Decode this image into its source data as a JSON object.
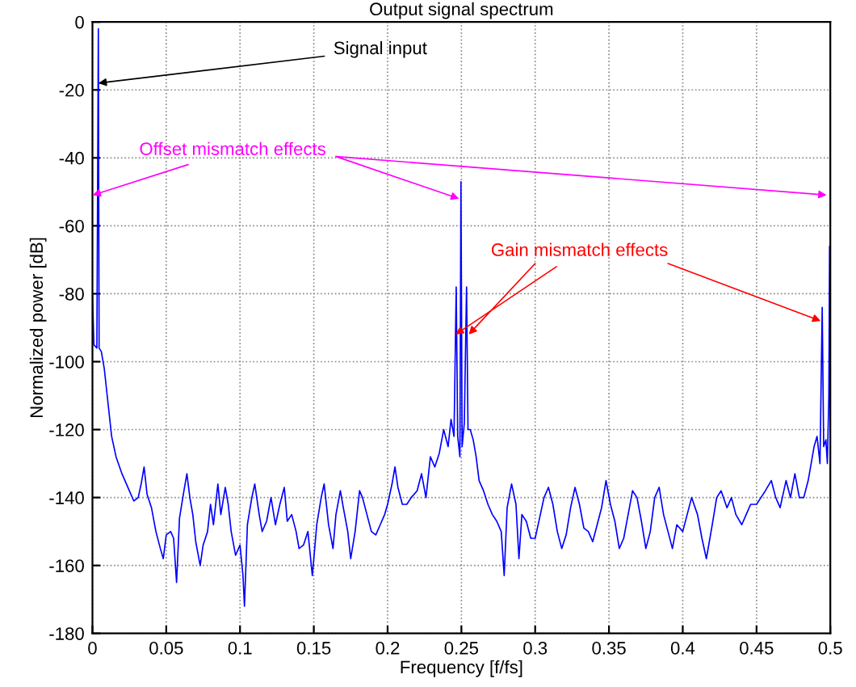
{
  "chart_data": {
    "type": "line",
    "title": "Output signal spectrum",
    "xlabel": "Frequency [f/fs]",
    "ylabel": "Normalized power [dB]",
    "xlim": [
      0,
      0.5
    ],
    "ylim": [
      -180,
      0
    ],
    "xticks": [
      0,
      0.05,
      0.1,
      0.15,
      0.2,
      0.25,
      0.3,
      0.35,
      0.4,
      0.45,
      0.5
    ],
    "yticks": [
      -180,
      -160,
      -140,
      -120,
      -100,
      -80,
      -60,
      -40,
      -20,
      0
    ],
    "grid": true,
    "line_style": "solid",
    "annotations": [
      {
        "text": "Signal input",
        "x": 0.004,
        "y": -18
      },
      {
        "text": "Offset mismatch effects",
        "x": 0,
        "y": -51
      },
      {
        "text": "Gain mismatch effects",
        "x": 0.246,
        "y": -92
      }
    ],
    "series": [
      {
        "color": "#0000ff",
        "x": [
          0,
          0.001,
          0.003,
          0.004,
          0.0045,
          0.006,
          0.008,
          0.01,
          0.013,
          0.016,
          0.02,
          0.025,
          0.028,
          0.031,
          0.033,
          0.035,
          0.037,
          0.04,
          0.043,
          0.046,
          0.048,
          0.05,
          0.053,
          0.055,
          0.057,
          0.059,
          0.062,
          0.064,
          0.066,
          0.068,
          0.07,
          0.073,
          0.075,
          0.078,
          0.08,
          0.082,
          0.085,
          0.087,
          0.09,
          0.092,
          0.094,
          0.097,
          0.1,
          0.102,
          0.103,
          0.105,
          0.108,
          0.11,
          0.113,
          0.115,
          0.118,
          0.121,
          0.124,
          0.127,
          0.13,
          0.132,
          0.135,
          0.138,
          0.14,
          0.143,
          0.146,
          0.149,
          0.152,
          0.155,
          0.157,
          0.16,
          0.163,
          0.165,
          0.168,
          0.17,
          0.173,
          0.175,
          0.178,
          0.181,
          0.183,
          0.186,
          0.189,
          0.192,
          0.195,
          0.198,
          0.2,
          0.203,
          0.205,
          0.207,
          0.21,
          0.213,
          0.216,
          0.22,
          0.223,
          0.226,
          0.229,
          0.232,
          0.235,
          0.238,
          0.241,
          0.243,
          0.245,
          0.2465,
          0.2475,
          0.249,
          0.2497,
          0.2505,
          0.252,
          0.2535,
          0.2545,
          0.256,
          0.258,
          0.26,
          0.262,
          0.265,
          0.268,
          0.271,
          0.274,
          0.277,
          0.279,
          0.281,
          0.284,
          0.287,
          0.289,
          0.291,
          0.294,
          0.297,
          0.3,
          0.303,
          0.306,
          0.309,
          0.312,
          0.315,
          0.318,
          0.321,
          0.324,
          0.327,
          0.33,
          0.333,
          0.336,
          0.339,
          0.342,
          0.345,
          0.348,
          0.351,
          0.354,
          0.357,
          0.36,
          0.363,
          0.366,
          0.369,
          0.372,
          0.375,
          0.378,
          0.381,
          0.384,
          0.387,
          0.39,
          0.393,
          0.396,
          0.4,
          0.403,
          0.406,
          0.41,
          0.413,
          0.416,
          0.42,
          0.423,
          0.426,
          0.43,
          0.433,
          0.436,
          0.44,
          0.443,
          0.446,
          0.45,
          0.453,
          0.456,
          0.46,
          0.463,
          0.466,
          0.47,
          0.473,
          0.476,
          0.479,
          0.482,
          0.485,
          0.487,
          0.489,
          0.491,
          0.493,
          0.4945,
          0.4955,
          0.497,
          0.498,
          0.499,
          0.4995,
          0.5
        ],
        "values": [
          -80,
          -95,
          -96,
          -2,
          -96,
          -97,
          -102,
          -110,
          -122,
          -128,
          -133,
          -138,
          -141,
          -140,
          -136,
          -131,
          -139,
          -143,
          -150,
          -155,
          -158,
          -151,
          -150,
          -152,
          -165,
          -146,
          -138,
          -133,
          -140,
          -145,
          -153,
          -160,
          -154,
          -150,
          -142,
          -148,
          -136,
          -145,
          -137,
          -142,
          -150,
          -157,
          -154,
          -163,
          -172,
          -148,
          -140,
          -136,
          -145,
          -150,
          -147,
          -140,
          -148,
          -142,
          -137,
          -147,
          -145,
          -150,
          -155,
          -154,
          -150,
          -163,
          -148,
          -140,
          -136,
          -148,
          -155,
          -145,
          -138,
          -143,
          -150,
          -158,
          -150,
          -138,
          -140,
          -145,
          -150,
          -151,
          -148,
          -145,
          -142,
          -136,
          -131,
          -137,
          -142,
          -142,
          -140,
          -138,
          -133,
          -140,
          -128,
          -131,
          -127,
          -120,
          -125,
          -117,
          -122,
          -78,
          -122,
          -128,
          -47,
          -125,
          -118,
          -78,
          -120,
          -120,
          -123,
          -128,
          -135,
          -138,
          -142,
          -145,
          -147,
          -150,
          -163,
          -143,
          -136,
          -142,
          -158,
          -145,
          -147,
          -152,
          -152,
          -146,
          -140,
          -137,
          -142,
          -150,
          -155,
          -151,
          -143,
          -137,
          -142,
          -149,
          -150,
          -153,
          -148,
          -143,
          -135,
          -142,
          -147,
          -155,
          -152,
          -145,
          -138,
          -140,
          -147,
          -155,
          -150,
          -140,
          -137,
          -145,
          -150,
          -155,
          -148,
          -150,
          -145,
          -140,
          -145,
          -152,
          -158,
          -148,
          -140,
          -138,
          -143,
          -140,
          -145,
          -148,
          -145,
          -142,
          -142,
          -140,
          -138,
          -135,
          -140,
          -143,
          -135,
          -140,
          -133,
          -140,
          -140,
          -135,
          -130,
          -125,
          -122,
          -130,
          -84,
          -125,
          -123,
          -130,
          -110,
          -66,
          -117
        ]
      }
    ]
  }
}
